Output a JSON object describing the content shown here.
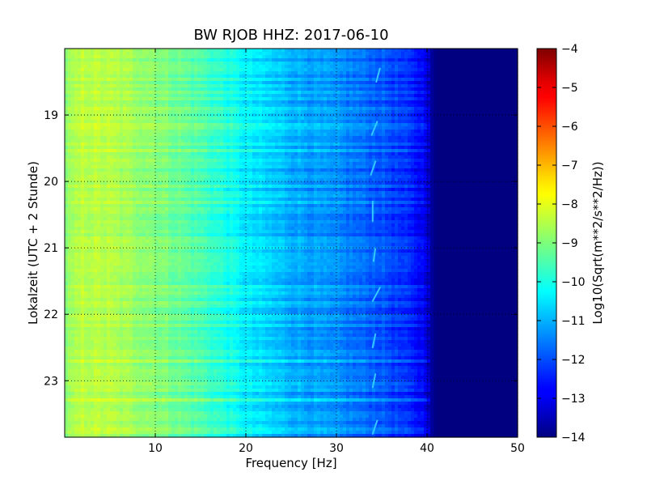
{
  "chart_data": {
    "type": "heatmap",
    "title": "BW RJOB HHZ: 2017-06-10",
    "xlabel": "Frequency [Hz]",
    "ylabel": "Lokalzeit (UTC + 2 Stunde)",
    "colorbar_label": "Log10(Sqrt(m**2/s**2/Hz))",
    "colormap": "jet",
    "xlim": [
      0,
      50
    ],
    "ylim": [
      18.0,
      23.85
    ],
    "y_inverted": true,
    "x_ticks": [
      10,
      20,
      30,
      40,
      50
    ],
    "x_tick_labels": [
      "10",
      "20",
      "30",
      "40",
      "50"
    ],
    "y_ticks": [
      19,
      20,
      21,
      22,
      23
    ],
    "y_tick_labels": [
      "19",
      "20",
      "21",
      "22",
      "23"
    ],
    "clim": [
      -14,
      -4
    ],
    "colorbar_ticks": [
      -4,
      -5,
      -6,
      -7,
      -8,
      -9,
      -10,
      -11,
      -12,
      -13,
      -14
    ],
    "colorbar_tick_labels": [
      "−4",
      "−5",
      "−6",
      "−7",
      "−8",
      "−9",
      "−10",
      "−11",
      "−12",
      "−13",
      "−14"
    ],
    "grid": true,
    "grid_style": "dotted",
    "frequency_profile": {
      "frequency_hz": [
        0,
        2,
        5,
        10,
        15,
        18,
        20,
        25,
        30,
        35,
        38,
        40,
        40.5,
        41,
        42,
        50
      ],
      "log10_amplitude": [
        -8.9,
        -8.4,
        -8.5,
        -8.9,
        -9.5,
        -10.0,
        -10.4,
        -11.0,
        -11.4,
        -11.9,
        -12.4,
        -12.9,
        -13.7,
        -14.0,
        -14.0,
        -14.0
      ]
    },
    "narrow_line": {
      "description_hz": 34.2,
      "times": [
        18.3,
        18.5,
        19.1,
        19.3,
        19.7,
        19.9,
        20.3,
        20.6,
        21.0,
        21.2,
        21.6,
        21.8,
        22.3,
        22.5,
        22.9,
        23.1,
        23.6,
        23.8
      ],
      "freqs": [
        34.8,
        34.4,
        34.5,
        33.9,
        34.3,
        33.8,
        34.0,
        34.0,
        34.3,
        34.1,
        34.8,
        34.0,
        34.3,
        34.0,
        34.3,
        34.0,
        34.5,
        34.0
      ]
    }
  }
}
